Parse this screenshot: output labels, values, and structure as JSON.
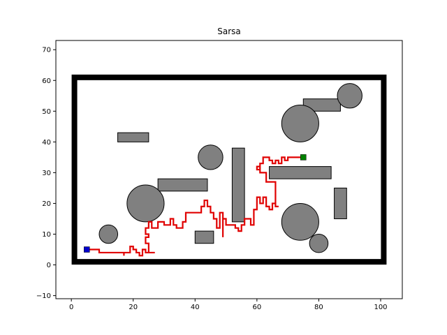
{
  "chart_data": {
    "type": "line",
    "title": "Sarsa",
    "xlabel": "",
    "ylabel": "",
    "xlim": [
      -5,
      107
    ],
    "ylim": [
      -11,
      73
    ],
    "x_ticks": [
      0,
      20,
      40,
      60,
      80,
      100
    ],
    "y_ticks": [
      -10,
      0,
      10,
      20,
      30,
      40,
      50,
      60,
      70
    ],
    "grid": false,
    "colors": {
      "path": "#e00000",
      "wall": "#000000",
      "obstacle": "#808080",
      "start": "#0000cc",
      "goal": "#008000"
    },
    "boundary": {
      "x0": 1,
      "y0": 1,
      "x1": 101,
      "y1": 61
    },
    "rect_obstacles": [
      {
        "x": 15,
        "y": 40,
        "w": 10,
        "h": 3
      },
      {
        "x": 28,
        "y": 24,
        "w": 16,
        "h": 4
      },
      {
        "x": 40,
        "y": 7,
        "w": 6,
        "h": 4
      },
      {
        "x": 52,
        "y": 14,
        "w": 4,
        "h": 24
      },
      {
        "x": 64,
        "y": 28,
        "w": 20,
        "h": 4
      },
      {
        "x": 75,
        "y": 50,
        "w": 12,
        "h": 4
      },
      {
        "x": 85,
        "y": 15,
        "w": 4,
        "h": 10
      }
    ],
    "circle_obstacles": [
      {
        "cx": 12,
        "cy": 10,
        "r": 3
      },
      {
        "cx": 24,
        "cy": 20,
        "r": 6
      },
      {
        "cx": 45,
        "cy": 35,
        "r": 4
      },
      {
        "cx": 74,
        "cy": 46,
        "r": 6
      },
      {
        "cx": 74,
        "cy": 14,
        "r": 6
      },
      {
        "cx": 80,
        "cy": 7,
        "r": 3
      },
      {
        "cx": 90,
        "cy": 55,
        "r": 4
      }
    ],
    "start": {
      "x": 5,
      "y": 5
    },
    "goal": {
      "x": 75,
      "y": 35
    },
    "series": [
      {
        "values": [
          [
            5,
            5
          ],
          [
            9,
            5
          ],
          [
            9,
            4
          ],
          [
            17,
            4
          ],
          [
            17,
            3
          ],
          [
            17,
            4
          ],
          [
            19,
            4
          ],
          [
            19,
            6
          ],
          [
            20,
            6
          ],
          [
            20,
            5
          ],
          [
            21,
            5
          ],
          [
            21,
            4
          ],
          [
            22,
            4
          ],
          [
            22,
            3
          ],
          [
            23,
            3
          ],
          [
            23,
            5
          ],
          [
            24,
            5
          ],
          [
            24,
            4
          ],
          [
            27,
            4
          ],
          [
            25,
            4
          ],
          [
            25,
            7
          ],
          [
            24,
            7
          ],
          [
            24,
            9
          ],
          [
            25,
            9
          ],
          [
            25,
            10
          ],
          [
            24,
            10
          ],
          [
            24,
            12
          ],
          [
            25,
            12
          ],
          [
            25,
            14
          ],
          [
            26,
            14
          ],
          [
            26,
            12
          ],
          [
            28,
            12
          ],
          [
            28,
            14
          ],
          [
            30,
            14
          ],
          [
            30,
            13
          ],
          [
            32,
            13
          ],
          [
            32,
            15
          ],
          [
            33,
            15
          ],
          [
            33,
            13
          ],
          [
            34,
            13
          ],
          [
            34,
            12
          ],
          [
            36,
            12
          ],
          [
            36,
            14
          ],
          [
            37,
            14
          ],
          [
            37,
            17
          ],
          [
            42,
            17
          ],
          [
            42,
            19
          ],
          [
            43,
            19
          ],
          [
            43,
            21
          ],
          [
            44,
            21
          ],
          [
            44,
            19
          ],
          [
            45,
            19
          ],
          [
            45,
            17
          ],
          [
            46,
            17
          ],
          [
            46,
            15
          ],
          [
            47,
            15
          ],
          [
            47,
            12
          ],
          [
            48,
            12
          ],
          [
            48,
            17
          ],
          [
            49,
            17
          ],
          [
            49,
            9
          ],
          [
            49,
            15
          ],
          [
            50,
            15
          ],
          [
            50,
            13
          ],
          [
            53,
            13
          ],
          [
            53,
            12
          ],
          [
            54,
            12
          ],
          [
            54,
            11
          ],
          [
            55,
            11
          ],
          [
            55,
            13
          ],
          [
            56,
            13
          ],
          [
            56,
            15
          ],
          [
            58,
            15
          ],
          [
            58,
            13
          ],
          [
            59,
            13
          ],
          [
            59,
            18
          ],
          [
            60,
            18
          ],
          [
            60,
            22
          ],
          [
            61,
            22
          ],
          [
            61,
            20
          ],
          [
            62,
            20
          ],
          [
            62,
            22
          ],
          [
            63,
            22
          ],
          [
            63,
            19
          ],
          [
            64,
            19
          ],
          [
            64,
            18
          ],
          [
            65,
            18
          ],
          [
            65,
            20
          ],
          [
            66,
            20
          ],
          [
            66,
            19
          ],
          [
            67,
            19
          ],
          [
            66,
            19
          ],
          [
            66,
            27
          ],
          [
            63,
            27
          ],
          [
            63,
            30
          ],
          [
            61,
            30
          ],
          [
            61,
            32
          ],
          [
            60,
            32
          ],
          [
            60,
            31
          ],
          [
            61,
            31
          ],
          [
            61,
            33
          ],
          [
            62,
            33
          ],
          [
            62,
            35
          ],
          [
            64,
            35
          ],
          [
            64,
            34
          ],
          [
            65,
            34
          ],
          [
            65,
            33
          ],
          [
            66,
            33
          ],
          [
            66,
            34
          ],
          [
            67,
            34
          ],
          [
            67,
            33
          ],
          [
            68,
            33
          ],
          [
            68,
            35
          ],
          [
            69,
            35
          ],
          [
            69,
            34
          ],
          [
            70,
            34
          ],
          [
            70,
            35
          ],
          [
            75,
            35
          ]
        ]
      }
    ]
  }
}
